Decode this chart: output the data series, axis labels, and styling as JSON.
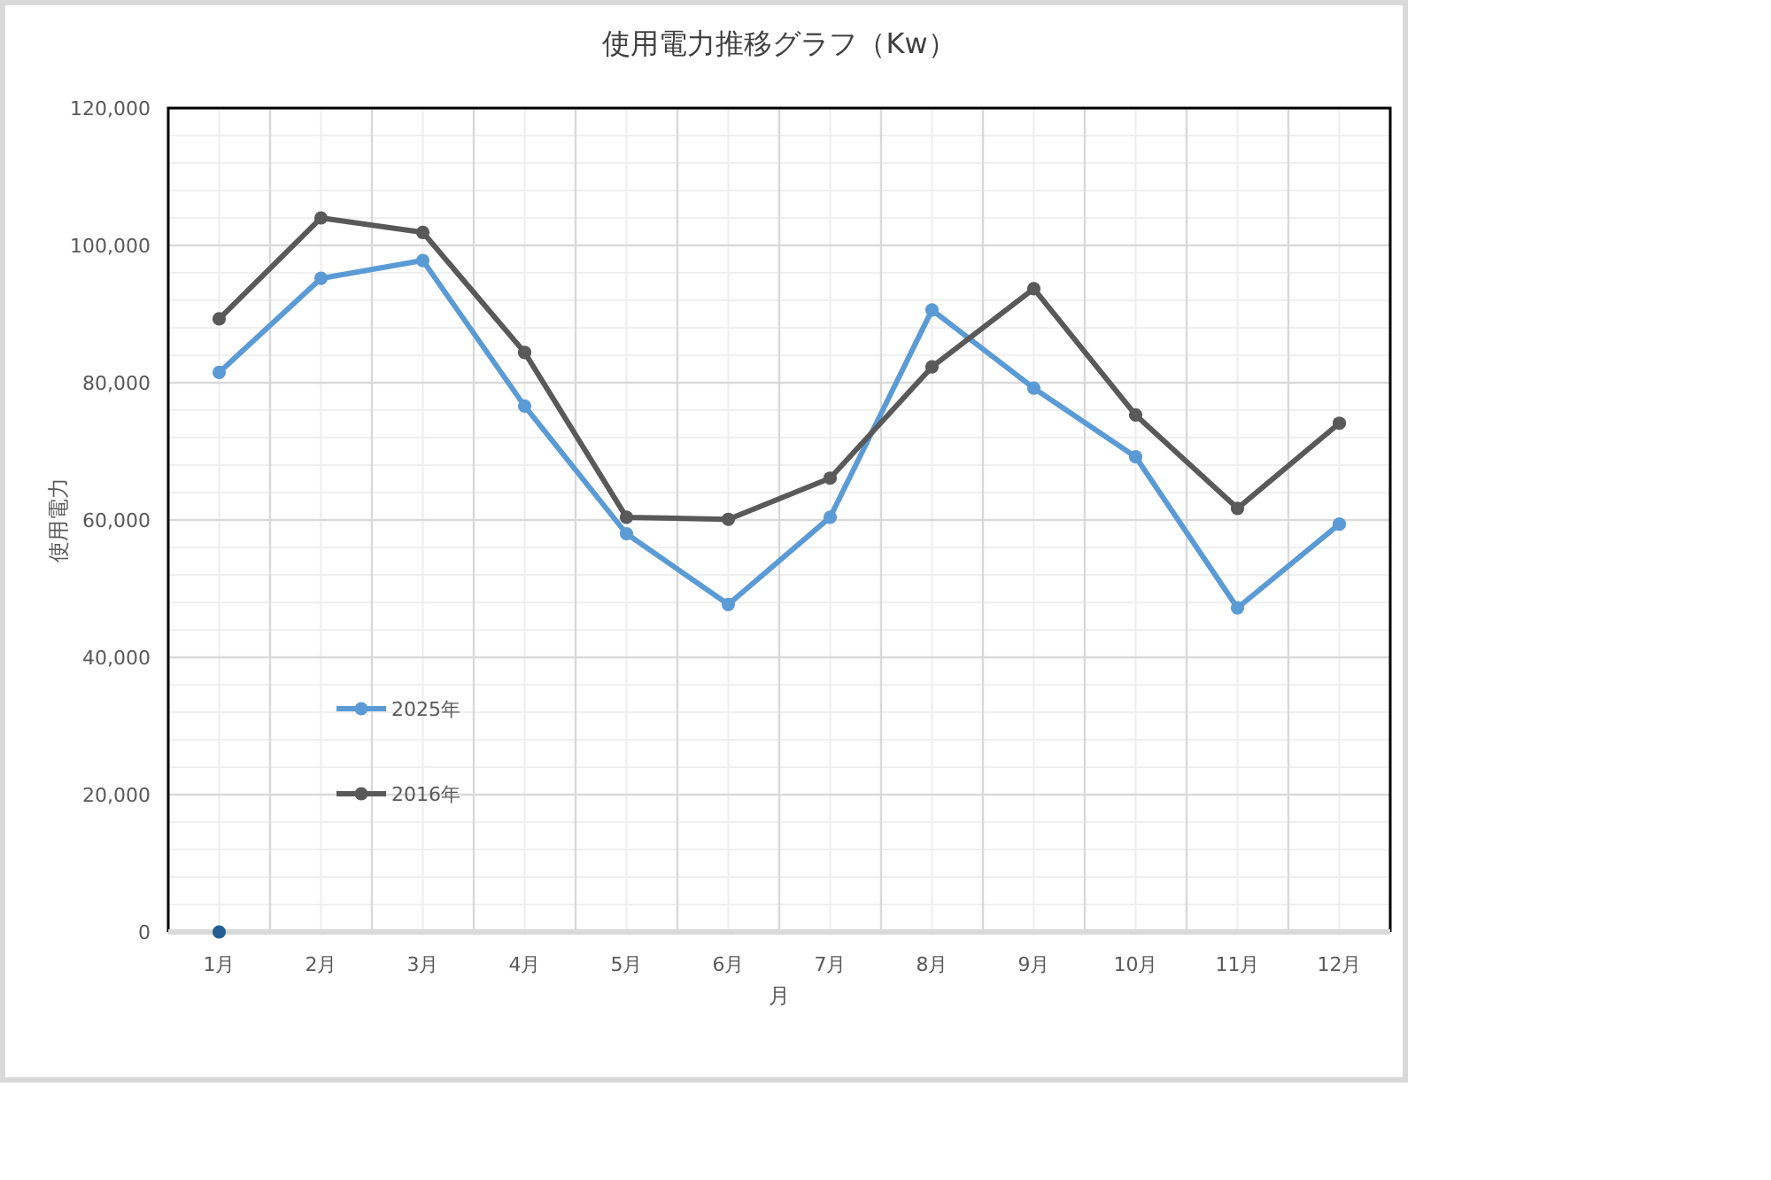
{
  "chart_data": {
    "type": "line",
    "title": "使用電力推移グラフ（Kw）",
    "xlabel": "月",
    "ylabel": "使用電力",
    "categories": [
      "1月",
      "2月",
      "3月",
      "4月",
      "5月",
      "6月",
      "7月",
      "8月",
      "9月",
      "10月",
      "11月",
      "12月"
    ],
    "series": [
      {
        "name": "2025年",
        "color": "#5b9bd5",
        "values": [
          81500,
          95200,
          97800,
          76600,
          58000,
          47700,
          60400,
          90600,
          79200,
          69200,
          47200,
          59400
        ]
      },
      {
        "name": "2016年",
        "color": "#595959",
        "values": [
          89300,
          104000,
          101900,
          84400,
          60400,
          60100,
          66100,
          82300,
          93700,
          75300,
          61700,
          74100
        ]
      },
      {
        "color": "#255e91",
        "values": [
          0,
          null,
          null,
          null,
          null,
          null,
          null,
          null,
          null,
          null,
          null,
          null
        ]
      }
    ],
    "ylim": [
      0,
      120000
    ],
    "yticks": [
      0,
      {
        "value": 20000,
        "label": "20,000"
      },
      {
        "value": 40000,
        "label": "40,000"
      },
      {
        "value": 60000,
        "label": "60,000"
      },
      {
        "value": 80000,
        "label": "80,000"
      },
      {
        "value": 100000,
        "label": "100,000"
      },
      {
        "value": 120000,
        "label": "120,000"
      }
    ],
    "grid": true,
    "legend": "left",
    "marker": "circle",
    "line_style": "solid"
  }
}
